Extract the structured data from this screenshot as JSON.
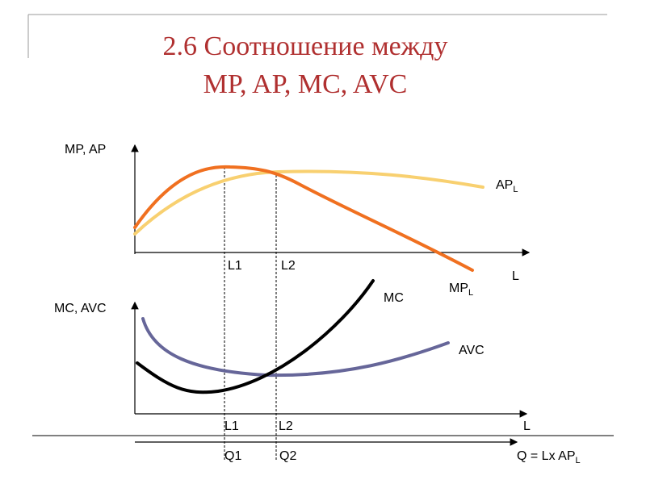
{
  "title": [
    "2.6 Соотношение между",
    "MP, AP, MC, AVC"
  ],
  "labels": [
    {
      "text": "MP, AP"
    },
    {
      "text": "AP",
      "sub": "L"
    },
    {
      "text": "L1"
    },
    {
      "text": "L2"
    },
    {
      "text": "L"
    },
    {
      "text": "MP",
      "sub": "L"
    },
    {
      "text": "MC"
    },
    {
      "text": "MC, AVC"
    },
    {
      "text": "AVC"
    },
    {
      "text": "L1"
    },
    {
      "text": "L2"
    },
    {
      "text": "L"
    },
    {
      "text": "Q1"
    },
    {
      "text": "Q2"
    },
    {
      "text": "Q = Lx AP",
      "sub": "L"
    }
  ]
}
